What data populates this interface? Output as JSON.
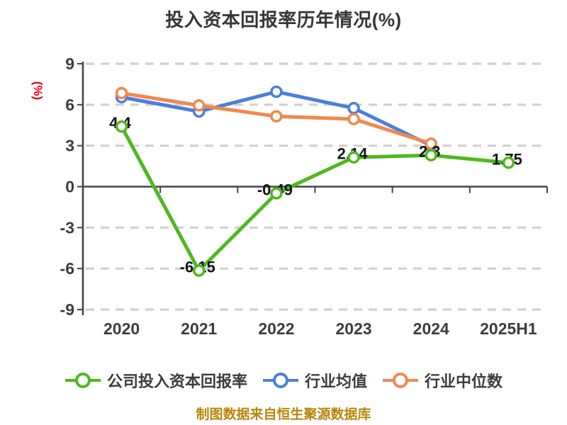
{
  "chart_data": {
    "type": "line",
    "title": "投入资本回报率历年情况(%)",
    "ylabel": "(%)",
    "xlabel": "",
    "ylim": [
      -9,
      9
    ],
    "yticks": [
      -9,
      -6,
      -3,
      0,
      3,
      6,
      9
    ],
    "grid": "dashed-horizontal",
    "legend_position": "bottom",
    "categories": [
      "2020",
      "2021",
      "2022",
      "2023",
      "2024",
      "2025H1"
    ],
    "series": [
      {
        "name": "公司投入资本回报率",
        "color": "#4eb81f",
        "values": [
          4.4,
          -6.15,
          -0.49,
          2.14,
          2.3,
          1.75
        ],
        "show_labels": true
      },
      {
        "name": "行业均值",
        "color": "#4b7fdd",
        "values": [
          6.55,
          5.5,
          6.95,
          5.75,
          3.0,
          null
        ],
        "show_labels": false
      },
      {
        "name": "行业中位数",
        "color": "#f0884f",
        "values": [
          6.85,
          5.95,
          5.15,
          4.95,
          3.15,
          null
        ],
        "show_labels": false
      }
    ]
  },
  "footer": {
    "text": "制图数据来自恒生聚源数据库"
  },
  "colors": {
    "title": "#363636",
    "axis": "#454545",
    "grid": "#d0d0d0",
    "tick_label": "#3d3d3d",
    "data_label": "#141414",
    "ylabel": "#e60012",
    "footer": "#b8860b",
    "marker_fill": "#ffffff"
  }
}
